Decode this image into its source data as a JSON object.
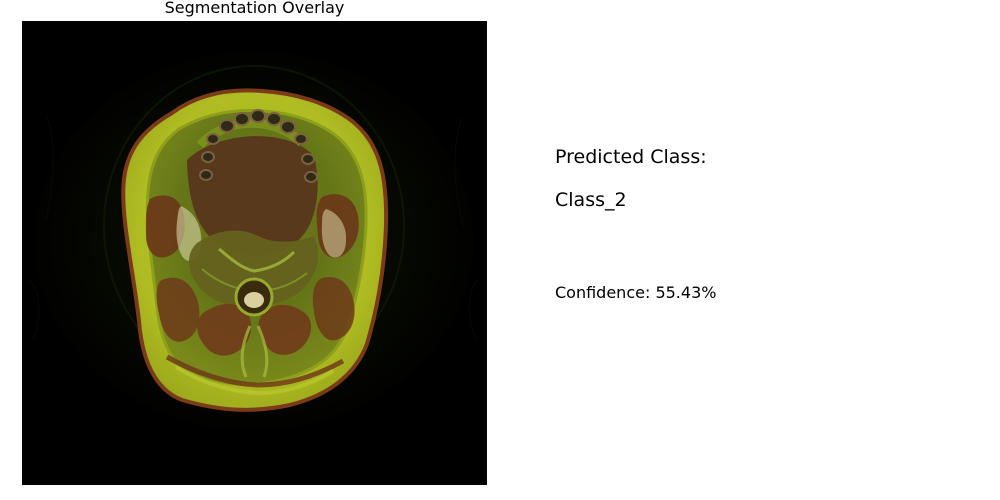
{
  "overlay_panel": {
    "title": "Segmentation Overlay",
    "image_semantic": "axial-head-mri-with-segmentation-overlay"
  },
  "prediction": {
    "label": "Predicted Class:",
    "class_name": "Class_2",
    "confidence_prefix": "Confidence: ",
    "confidence_percent": 55.43,
    "confidence_text": "Confidence: 55.43%"
  },
  "colors": {
    "background": "#ffffff",
    "image_background": "#000000",
    "overlay_fill": "#a6b51f",
    "overlay_edge": "#6b3a10",
    "tissue_dark": "#4f2e14",
    "tissue_green": "#5d8a20",
    "text": "#000000"
  }
}
